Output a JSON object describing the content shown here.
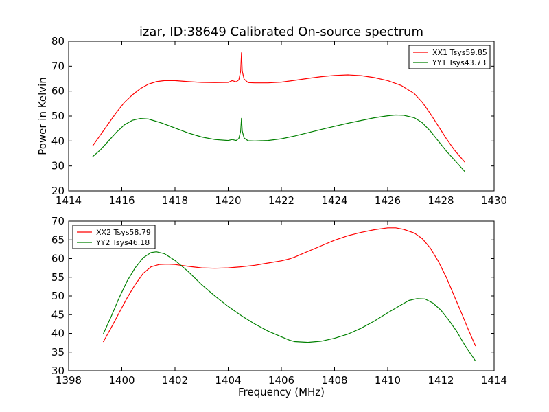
{
  "chart_data": [
    {
      "type": "line",
      "title": "izar, ID:38649 Calibrated On-source spectrum",
      "xlabel": "",
      "ylabel": "Power in Kelvin",
      "xlim": [
        1414,
        1430
      ],
      "ylim": [
        20,
        80
      ],
      "xticks": [
        "1414",
        "1416",
        "1418",
        "1420",
        "1422",
        "1424",
        "1426",
        "1428",
        "1430"
      ],
      "yticks": [
        "20",
        "30",
        "40",
        "50",
        "60",
        "70",
        "80"
      ],
      "legend": "top-right",
      "series": [
        {
          "name": "XX1 Tsys59.85",
          "color": "#ff0000",
          "points": [
            [
              1414.9,
              38
            ],
            [
              1415.2,
              42.5
            ],
            [
              1415.5,
              47
            ],
            [
              1415.8,
              51.5
            ],
            [
              1416.1,
              55.5
            ],
            [
              1416.4,
              58.5
            ],
            [
              1416.7,
              61
            ],
            [
              1417.0,
              62.8
            ],
            [
              1417.3,
              63.8
            ],
            [
              1417.6,
              64.2
            ],
            [
              1418.0,
              64.2
            ],
            [
              1418.5,
              63.8
            ],
            [
              1419.0,
              63.5
            ],
            [
              1419.5,
              63.4
            ],
            [
              1420.0,
              63.5
            ],
            [
              1420.15,
              64.2
            ],
            [
              1420.3,
              63.7
            ],
            [
              1420.4,
              64.5
            ],
            [
              1420.47,
              68
            ],
            [
              1420.5,
              75.5
            ],
            [
              1420.53,
              68
            ],
            [
              1420.6,
              64.8
            ],
            [
              1420.75,
              63.4
            ],
            [
              1421.0,
              63.3
            ],
            [
              1421.5,
              63.3
            ],
            [
              1422.0,
              63.6
            ],
            [
              1422.5,
              64.3
            ],
            [
              1423.0,
              65.1
            ],
            [
              1423.5,
              65.8
            ],
            [
              1424.0,
              66.3
            ],
            [
              1424.5,
              66.5
            ],
            [
              1425.0,
              66.2
            ],
            [
              1425.5,
              65.4
            ],
            [
              1426.0,
              64.2
            ],
            [
              1426.5,
              62.3
            ],
            [
              1427.0,
              59
            ],
            [
              1427.3,
              55.5
            ],
            [
              1427.6,
              51
            ],
            [
              1427.9,
              46
            ],
            [
              1428.2,
              41
            ],
            [
              1428.5,
              36.5
            ],
            [
              1428.9,
              31.5
            ]
          ]
        },
        {
          "name": "YY1 Tsys43.73",
          "color": "#008000",
          "points": [
            [
              1414.9,
              33.7
            ],
            [
              1415.2,
              36.5
            ],
            [
              1415.5,
              40
            ],
            [
              1415.8,
              43.5
            ],
            [
              1416.1,
              46.5
            ],
            [
              1416.4,
              48.3
            ],
            [
              1416.7,
              49
            ],
            [
              1417.0,
              48.8
            ],
            [
              1417.5,
              47.2
            ],
            [
              1418.0,
              45.2
            ],
            [
              1418.5,
              43.2
            ],
            [
              1419.0,
              41.6
            ],
            [
              1419.5,
              40.6
            ],
            [
              1420.0,
              40.2
            ],
            [
              1420.15,
              40.6
            ],
            [
              1420.3,
              40.2
            ],
            [
              1420.4,
              41
            ],
            [
              1420.47,
              44
            ],
            [
              1420.5,
              49.2
            ],
            [
              1420.53,
              44
            ],
            [
              1420.6,
              41.2
            ],
            [
              1420.75,
              40.1
            ],
            [
              1421.0,
              40.0
            ],
            [
              1421.5,
              40.2
            ],
            [
              1422.0,
              40.9
            ],
            [
              1422.5,
              42
            ],
            [
              1423.0,
              43.3
            ],
            [
              1423.5,
              44.6
            ],
            [
              1424.0,
              45.9
            ],
            [
              1424.5,
              47.1
            ],
            [
              1425.0,
              48.2
            ],
            [
              1425.5,
              49.3
            ],
            [
              1426.0,
              50.1
            ],
            [
              1426.3,
              50.4
            ],
            [
              1426.6,
              50.3
            ],
            [
              1427.0,
              49.3
            ],
            [
              1427.3,
              47.3
            ],
            [
              1427.6,
              44
            ],
            [
              1427.9,
              40
            ],
            [
              1428.2,
              36
            ],
            [
              1428.5,
              32.5
            ],
            [
              1428.9,
              27.7
            ]
          ]
        }
      ]
    },
    {
      "type": "line",
      "title": "",
      "xlabel": "Frequency (MHz)",
      "ylabel": "",
      "xlim": [
        1398,
        1414
      ],
      "ylim": [
        30,
        70
      ],
      "xticks": [
        "1398",
        "1400",
        "1402",
        "1404",
        "1406",
        "1408",
        "1410",
        "1412",
        "1414"
      ],
      "yticks": [
        "30",
        "35",
        "40",
        "45",
        "50",
        "55",
        "60",
        "65",
        "70"
      ],
      "legend": "top-left",
      "series": [
        {
          "name": "XX2 Tsys58.79",
          "color": "#ff0000",
          "points": [
            [
              1399.3,
              37.7
            ],
            [
              1399.6,
              41.5
            ],
            [
              1399.9,
              45.5
            ],
            [
              1400.2,
              49.5
            ],
            [
              1400.5,
              53
            ],
            [
              1400.8,
              56
            ],
            [
              1401.1,
              57.8
            ],
            [
              1401.4,
              58.4
            ],
            [
              1401.7,
              58.5
            ],
            [
              1402.0,
              58.4
            ],
            [
              1402.5,
              57.9
            ],
            [
              1403.0,
              57.5
            ],
            [
              1403.5,
              57.4
            ],
            [
              1404.0,
              57.5
            ],
            [
              1404.5,
              57.8
            ],
            [
              1405.0,
              58.2
            ],
            [
              1405.5,
              58.8
            ],
            [
              1406.0,
              59.4
            ],
            [
              1406.3,
              59.9
            ],
            [
              1406.5,
              60.4
            ],
            [
              1407.0,
              61.9
            ],
            [
              1407.5,
              63.4
            ],
            [
              1408.0,
              64.9
            ],
            [
              1408.5,
              66.1
            ],
            [
              1409.0,
              67
            ],
            [
              1409.5,
              67.7
            ],
            [
              1410.0,
              68.2
            ],
            [
              1410.3,
              68.2
            ],
            [
              1410.6,
              67.8
            ],
            [
              1411.0,
              66.8
            ],
            [
              1411.3,
              65.3
            ],
            [
              1411.6,
              62.8
            ],
            [
              1411.9,
              59.3
            ],
            [
              1412.2,
              55
            ],
            [
              1412.5,
              50
            ],
            [
              1412.8,
              45
            ],
            [
              1413.0,
              41.5
            ],
            [
              1413.3,
              36.6
            ]
          ]
        },
        {
          "name": "YY2 Tsys46.18",
          "color": "#008000",
          "points": [
            [
              1399.3,
              39.8
            ],
            [
              1399.6,
              44.5
            ],
            [
              1399.9,
              49.5
            ],
            [
              1400.2,
              54
            ],
            [
              1400.5,
              57.5
            ],
            [
              1400.8,
              60.2
            ],
            [
              1401.1,
              61.6
            ],
            [
              1401.3,
              61.8
            ],
            [
              1401.6,
              61.3
            ],
            [
              1402.0,
              59.5
            ],
            [
              1402.5,
              56.5
            ],
            [
              1403.0,
              53
            ],
            [
              1403.5,
              50
            ],
            [
              1404.0,
              47.2
            ],
            [
              1404.5,
              44.7
            ],
            [
              1405.0,
              42.5
            ],
            [
              1405.5,
              40.6
            ],
            [
              1406.0,
              39.1
            ],
            [
              1406.3,
              38.2
            ],
            [
              1406.5,
              37.8
            ],
            [
              1407.0,
              37.6
            ],
            [
              1407.5,
              37.9
            ],
            [
              1408.0,
              38.7
            ],
            [
              1408.5,
              39.8
            ],
            [
              1409.0,
              41.4
            ],
            [
              1409.5,
              43.3
            ],
            [
              1410.0,
              45.5
            ],
            [
              1410.5,
              47.6
            ],
            [
              1410.8,
              48.8
            ],
            [
              1411.1,
              49.3
            ],
            [
              1411.4,
              49.2
            ],
            [
              1411.7,
              48.1
            ],
            [
              1412.0,
              46.2
            ],
            [
              1412.3,
              43.5
            ],
            [
              1412.6,
              40.5
            ],
            [
              1412.9,
              36.8
            ],
            [
              1413.3,
              32.6
            ]
          ]
        }
      ]
    }
  ]
}
